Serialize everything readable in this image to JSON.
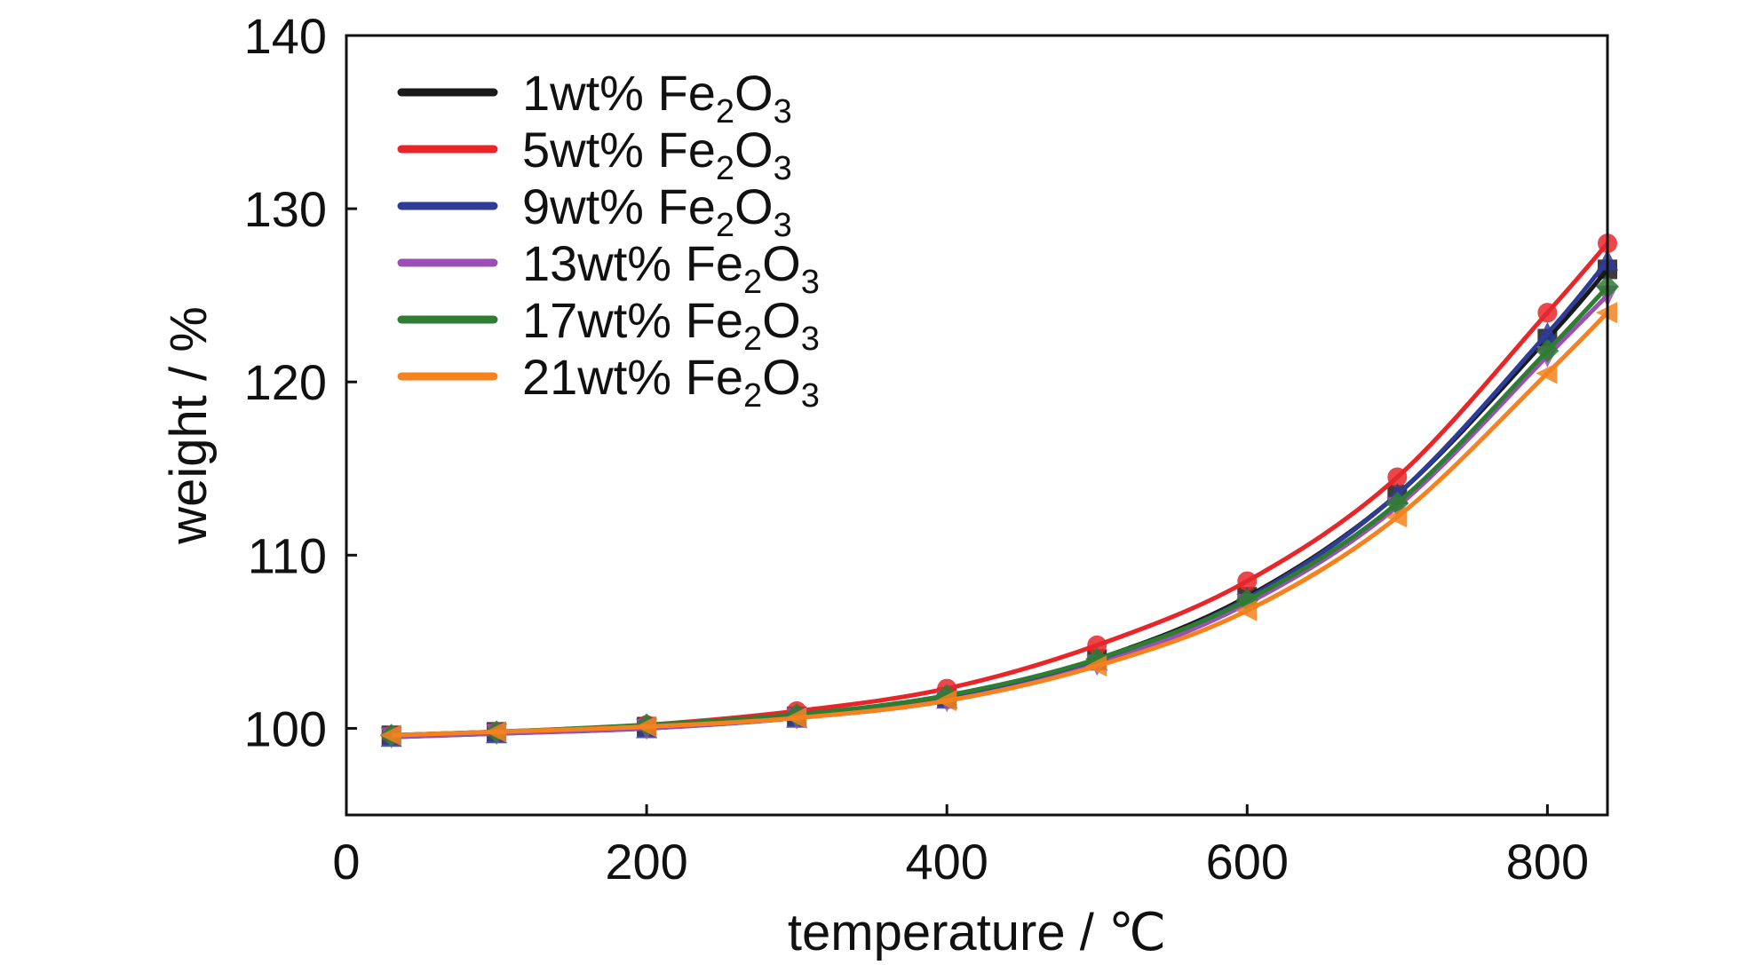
{
  "chart_data": {
    "type": "line",
    "xlabel": "temperature / ℃",
    "ylabel": "weight / %",
    "xlim": [
      0,
      840
    ],
    "ylim": [
      95,
      140
    ],
    "xticks": [
      0,
      200,
      400,
      600,
      800
    ],
    "yticks": [
      100,
      110,
      120,
      130,
      140
    ],
    "grid": false,
    "legend_position": "top-left",
    "series": [
      {
        "name": "1wt% Fe2O3",
        "label_prefix": "1wt% Fe",
        "label_sub1": "2",
        "label_mid": "O",
        "label_sub2": "3",
        "color": "#1a1a1a",
        "marker": "square",
        "x": [
          30,
          100,
          200,
          300,
          400,
          500,
          600,
          700,
          800,
          840
        ],
        "values": [
          99.6,
          99.8,
          100.1,
          100.7,
          101.8,
          104.0,
          107.6,
          113.5,
          122.5,
          126.5
        ]
      },
      {
        "name": "5wt% Fe2O3",
        "label_prefix": "5wt% Fe",
        "label_sub1": "2",
        "label_mid": "O",
        "label_sub2": "3",
        "color": "#e8262a",
        "marker": "circle",
        "x": [
          30,
          100,
          200,
          300,
          400,
          500,
          600,
          700,
          800,
          840
        ],
        "values": [
          99.6,
          99.8,
          100.2,
          101.0,
          102.3,
          104.8,
          108.5,
          114.5,
          124.0,
          128.0
        ]
      },
      {
        "name": "9wt% Fe2O3",
        "label_prefix": "9wt% Fe",
        "label_sub1": "2",
        "label_mid": "O",
        "label_sub2": "3",
        "color": "#2e3c96",
        "marker": "triangle-up",
        "x": [
          30,
          100,
          200,
          300,
          400,
          500,
          600,
          700,
          800,
          840
        ],
        "values": [
          99.5,
          99.7,
          100.0,
          100.6,
          101.7,
          103.9,
          107.5,
          113.5,
          122.8,
          127.0
        ]
      },
      {
        "name": "13wt% Fe2O3",
        "label_prefix": "13wt% Fe",
        "label_sub1": "2",
        "label_mid": "O",
        "label_sub2": "3",
        "color": "#9b4fb4",
        "marker": "triangle-down",
        "x": [
          30,
          100,
          200,
          300,
          400,
          500,
          600,
          700,
          800,
          840
        ],
        "values": [
          99.5,
          99.7,
          100.0,
          100.6,
          101.6,
          103.7,
          107.2,
          112.8,
          121.5,
          125.0
        ]
      },
      {
        "name": "17wt% Fe2O3",
        "label_prefix": "17wt% Fe",
        "label_sub1": "2",
        "label_mid": "O",
        "label_sub2": "3",
        "color": "#2e7d32",
        "marker": "diamond",
        "x": [
          30,
          100,
          200,
          300,
          400,
          500,
          600,
          700,
          800,
          840
        ],
        "values": [
          99.6,
          99.8,
          100.2,
          100.8,
          101.9,
          104.0,
          107.4,
          113.0,
          121.8,
          125.5
        ]
      },
      {
        "name": "21wt% Fe2O3",
        "label_prefix": "21wt% Fe",
        "label_sub1": "2",
        "label_mid": "O",
        "label_sub2": "3",
        "color": "#f5821f",
        "marker": "triangle-left",
        "x": [
          30,
          100,
          200,
          300,
          400,
          500,
          600,
          700,
          800,
          840
        ],
        "values": [
          99.6,
          99.8,
          100.1,
          100.6,
          101.6,
          103.6,
          106.8,
          112.2,
          120.5,
          124.0
        ]
      }
    ]
  }
}
